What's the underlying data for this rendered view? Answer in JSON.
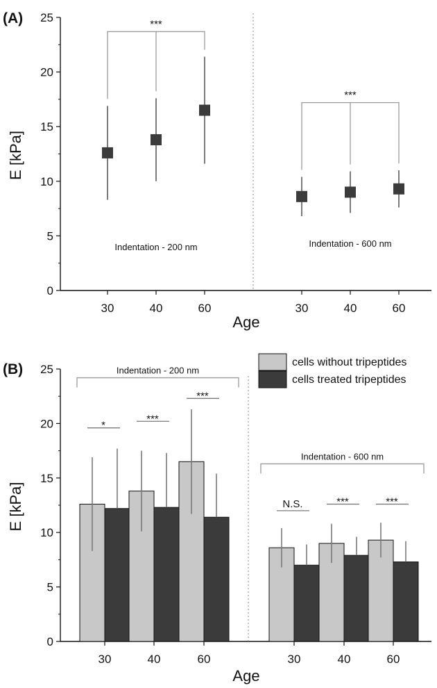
{
  "colors": {
    "dark": "#3b3b3b",
    "light": "#c8c8c8",
    "err": "#7a7a7a",
    "bracket": "#9a9a9a",
    "axis": "#111111",
    "divider": "#888888"
  },
  "chart_data": [
    {
      "panel": "(A)",
      "type": "scatter",
      "ylabel": "E [kPa]",
      "xlabel": "Age",
      "ylim": [
        0,
        25
      ],
      "yticks": [
        "0",
        "5",
        "10",
        "15",
        "20",
        "25"
      ],
      "groups": [
        {
          "label": "Indentation - 200 nm",
          "categories": [
            "30",
            "40",
            "60"
          ],
          "values": [
            12.6,
            13.8,
            16.5
          ],
          "errors": [
            4.3,
            3.8,
            4.9
          ],
          "bracket_label": "***",
          "bracket_y": 23.7
        },
        {
          "label": "Indentation - 600 nm",
          "categories": [
            "30",
            "40",
            "60"
          ],
          "values": [
            8.6,
            9.0,
            9.3
          ],
          "errors": [
            1.8,
            1.9,
            1.7
          ],
          "bracket_label": "***",
          "bracket_y": 17.2
        }
      ],
      "grid": false
    },
    {
      "panel": "(B)",
      "type": "bar",
      "ylabel": "E [kPa]",
      "xlabel": "Age",
      "ylim": [
        0,
        25
      ],
      "yticks": [
        "0",
        "5",
        "10",
        "15",
        "20",
        "25"
      ],
      "legend_position": "top-right",
      "series": [
        {
          "name": "cells without tripeptides",
          "color_key": "light"
        },
        {
          "name": "cells treated tripeptides",
          "color_key": "dark"
        }
      ],
      "groups": [
        {
          "label": "Indentation - 200 nm",
          "categories": [
            "30",
            "40",
            "60"
          ],
          "without": [
            12.6,
            13.8,
            16.5
          ],
          "without_err": [
            4.3,
            3.7,
            4.8
          ],
          "treated": [
            12.2,
            12.3,
            11.4
          ],
          "treated_err": [
            5.5,
            5.0,
            4.0
          ],
          "significance": [
            "*",
            "***",
            "***"
          ],
          "sig_y": [
            19.6,
            20.2,
            22.3
          ],
          "bracket_y": 24.2
        },
        {
          "label": "Indentation - 600 nm",
          "categories": [
            "30",
            "40",
            "60"
          ],
          "without": [
            8.6,
            9.0,
            9.3
          ],
          "without_err": [
            1.8,
            1.8,
            1.6
          ],
          "treated": [
            7.0,
            7.9,
            7.3
          ],
          "treated_err": [
            1.9,
            1.7,
            1.9
          ],
          "significance": [
            "N.S.",
            "***",
            "***"
          ],
          "sig_y": [
            12.0,
            12.6,
            12.6
          ],
          "bracket_y": 16.3
        }
      ],
      "grid": false
    }
  ]
}
